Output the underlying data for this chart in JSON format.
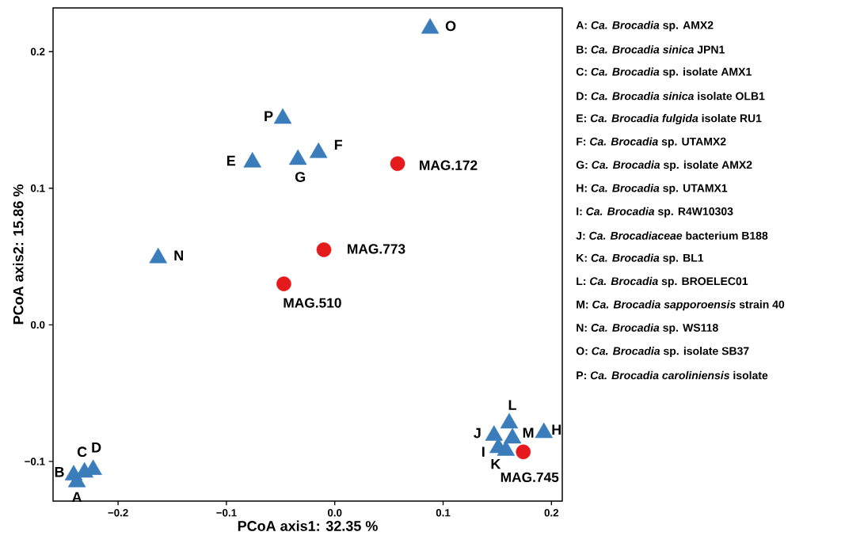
{
  "chart_data": {
    "type": "scatter",
    "xlabel": "PCoA axis1:  32.35 %",
    "ylabel": "PCoA axis2:  15.86 %",
    "xlim": [
      -0.26,
      0.21
    ],
    "ylim": [
      -0.129,
      0.232
    ],
    "xticks": [
      {
        "value": -0.2,
        "label": "−0.2"
      },
      {
        "value": -0.1,
        "label": "−0.1"
      },
      {
        "value": 0,
        "label": "0.0"
      },
      {
        "value": 0.1,
        "label": "0.1"
      },
      {
        "value": 0.2,
        "label": "0.2"
      }
    ],
    "yticks": [
      {
        "value": -0.1,
        "label": "−0.1"
      },
      {
        "value": 0,
        "label": "0.0"
      },
      {
        "value": 0.1,
        "label": "0.1"
      },
      {
        "value": 0.2,
        "label": "0.2"
      }
    ],
    "grid": false,
    "series": [
      {
        "color": "#3a7dba",
        "marker": "triangle",
        "x": [
          -0.238,
          -0.241,
          -0.231,
          -0.223,
          -0.076,
          -0.015,
          -0.034,
          0.193,
          0.151,
          0.147,
          0.158,
          0.161,
          0.164,
          -0.163,
          0.088,
          -0.048
        ],
        "values": [
          -0.115,
          -0.11,
          -0.108,
          -0.106,
          0.119,
          0.126,
          0.121,
          -0.079,
          -0.09,
          -0.081,
          -0.092,
          -0.072,
          -0.083,
          0.049,
          0.217,
          0.151
        ]
      },
      {
        "color": "#e41a1c",
        "marker": "circle",
        "x": [
          0.058,
          -0.01,
          -0.047,
          0.174
        ],
        "values": [
          0.118,
          0.055,
          0.03,
          -0.093
        ]
      }
    ],
    "annotations": [
      {
        "text": "A",
        "x": -0.238,
        "y": -0.115
      },
      {
        "text": "B",
        "x": -0.241,
        "y": -0.11
      },
      {
        "text": "C",
        "x": -0.231,
        "y": -0.108
      },
      {
        "text": "D",
        "x": -0.223,
        "y": -0.106
      },
      {
        "text": "E",
        "x": -0.076,
        "y": 0.119
      },
      {
        "text": "F",
        "x": -0.015,
        "y": 0.126
      },
      {
        "text": "G",
        "x": -0.034,
        "y": 0.121
      },
      {
        "text": "H",
        "x": 0.193,
        "y": -0.079
      },
      {
        "text": "I",
        "x": 0.151,
        "y": -0.09
      },
      {
        "text": "J",
        "x": 0.147,
        "y": -0.081
      },
      {
        "text": "K",
        "x": 0.158,
        "y": -0.092
      },
      {
        "text": "L",
        "x": 0.161,
        "y": -0.072
      },
      {
        "text": "M",
        "x": 0.164,
        "y": -0.083
      },
      {
        "text": "N",
        "x": -0.163,
        "y": 0.049
      },
      {
        "text": "O",
        "x": 0.088,
        "y": 0.217
      },
      {
        "text": "P",
        "x": -0.048,
        "y": 0.151
      },
      {
        "text": "MAG.172",
        "x": 0.058,
        "y": 0.118
      },
      {
        "text": "MAG.773",
        "x": -0.01,
        "y": 0.055
      },
      {
        "text": "MAG.510",
        "x": -0.047,
        "y": 0.03
      },
      {
        "text": "MAG.745",
        "x": 0.174,
        "y": -0.093
      },
      "A: *Ca. Brocadia* sp. AMX2",
      "B: *Ca. Brocadia sinica* JPN1",
      "C: *Ca. Brocadia* sp. isolate AMX1",
      "D: *Ca. Brocadia sinica* isolate OLB1",
      "E: *Ca. Brocadia fulgida* isolate RU1",
      "F: *Ca. Brocadia* sp. UTAMX2",
      "G: *Ca. Brocadia* sp. isolate AMX2",
      "H: *Ca. Brocadia* sp. UTAMX1",
      "I: *Ca. Brocadia* sp. R4W10303",
      "J: *Ca. Brocadiaceae* bacterium B188",
      "K: *Ca. Brocadia* sp. BL1",
      "L: *Ca. Brocadia* sp. BROELEC01",
      "M: *Ca. Brocadia sapporoensis* strain 40",
      "N: *Ca. Brocadia* sp. WS118",
      "O: *Ca. Brocadia* sp. isolate SB37",
      "P: *Ca. Brocadia caroliniensis* isolate"
    ]
  }
}
